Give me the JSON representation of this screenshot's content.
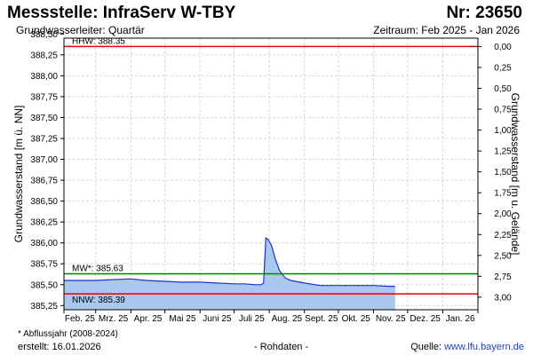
{
  "header": {
    "title": "Messstelle: InfraServ W-TBY",
    "nr": "Nr: 23650",
    "subtitle": "Grundwasserleiter: Quartär",
    "zeitraum": "Zeitraum: Feb 2025 - Jan 2026"
  },
  "footer": {
    "note": "* Abflussjahr (2008-2024)",
    "created": "erstellt:  16.01.2026",
    "rohdaten": "- Rohdaten -",
    "source_label": "Quelle: ",
    "source_url": "www.lfu.bayern.de"
  },
  "colors": {
    "hhw": "#e00000",
    "nnw": "#e00000",
    "mw": "#008000",
    "line": "#2030d0",
    "fill": "#a8c8f0"
  },
  "chart_data": {
    "type": "area",
    "ylabel_left": "Grundwasserstand [m ü. NN]",
    "ylabel_right": "Grundwasserstand [m u. Gelände]",
    "ylim": [
      385.2,
      388.45
    ],
    "yticks_left": [
      "388,50",
      "388,25",
      "388,00",
      "387,75",
      "387,50",
      "387,25",
      "387,00",
      "386,75",
      "386,50",
      "386,25",
      "386,00",
      "385,75",
      "385,50",
      "385,25"
    ],
    "yticks_left_values": [
      388.5,
      388.25,
      388.0,
      387.75,
      387.5,
      387.25,
      387.0,
      386.75,
      386.5,
      386.25,
      386.0,
      385.75,
      385.5,
      385.25
    ],
    "yticks_right": [
      "0,00",
      "0,25",
      "0,50",
      "0,75",
      "1,00",
      "1,25",
      "1,50",
      "1,75",
      "2,00",
      "2,25",
      "2,50",
      "2,75",
      "3,00"
    ],
    "yticks_right_values": [
      0,
      0.25,
      0.5,
      0.75,
      1.0,
      1.25,
      1.5,
      1.75,
      2.0,
      2.25,
      2.5,
      2.75,
      3.0
    ],
    "ground_level": 388.35,
    "xlim": [
      "2025-02-01",
      "2026-02-01"
    ],
    "x_ticks": [
      "2025-02-01",
      "2025-03-01",
      "2025-04-01",
      "2025-05-01",
      "2025-06-01",
      "2025-07-01",
      "2025-08-01",
      "2025-09-01",
      "2025-10-01",
      "2025-11-01",
      "2025-12-01",
      "2026-01-01",
      "2026-02-01"
    ],
    "x_tick_labels": [
      "Feb. 25",
      "Mrz. 25",
      "Apr. 25",
      "Mai 25",
      "Juni 25",
      "Juli 25",
      "Aug. 25",
      "Sept. 25",
      "Okt. 25",
      "Nov. 25",
      "Dez. 25",
      "Jan. 26"
    ],
    "reference_lines": [
      {
        "label": "HHW: 388.35",
        "value": 388.35
      },
      {
        "label": "MW*: 385.63",
        "value": 385.63
      },
      {
        "label": "NNW: 385.39",
        "value": 385.39
      }
    ],
    "series": [
      {
        "x": [
          "2025-02-01",
          "2025-02-15",
          "2025-03-01",
          "2025-03-15",
          "2025-03-31",
          "2025-04-15",
          "2025-05-01",
          "2025-05-15",
          "2025-06-01",
          "2025-06-15",
          "2025-07-01",
          "2025-07-10",
          "2025-07-20",
          "2025-07-25",
          "2025-07-27",
          "2025-07-29",
          "2025-07-31",
          "2025-08-03",
          "2025-08-06",
          "2025-08-10",
          "2025-08-15",
          "2025-08-20",
          "2025-09-01",
          "2025-09-15",
          "2025-10-01",
          "2025-10-15",
          "2025-11-01",
          "2025-11-15",
          "2025-11-20"
        ],
        "values": [
          385.55,
          385.55,
          385.55,
          385.56,
          385.57,
          385.55,
          385.54,
          385.53,
          385.53,
          385.52,
          385.51,
          385.51,
          385.5,
          385.5,
          385.52,
          386.06,
          386.04,
          385.97,
          385.82,
          385.67,
          385.58,
          385.55,
          385.52,
          385.49,
          385.49,
          385.49,
          385.49,
          385.48,
          385.48
        ]
      }
    ]
  }
}
